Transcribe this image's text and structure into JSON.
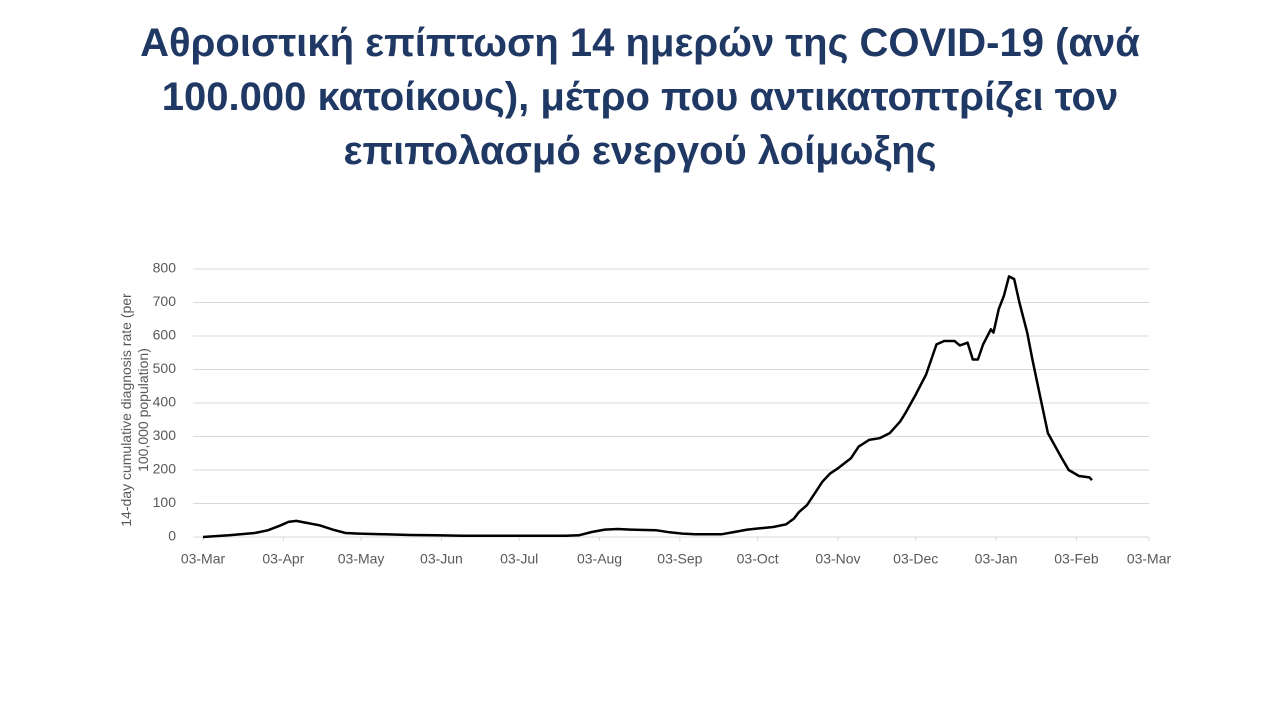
{
  "chart_data": {
    "type": "line",
    "title": "Αθροιστική επίπτωση 14 ημερών της COVID-19 (ανά 100.000 κατοίκους), μέτρο που αντικατοπτρίζει τον επιπολασμό ενεργού λοίμωξης",
    "y_label": "14-day cumulative diagnosis rate (per 100,000 population)",
    "series": [
      {
        "name": "14-day cumulative diagnosis rate",
        "color": "#000000",
        "x": [
          0,
          10,
          20,
          25,
          30,
          33,
          36,
          40,
          45,
          50,
          55,
          60,
          70,
          80,
          90,
          100,
          120,
          140,
          145,
          150,
          155,
          160,
          165,
          175,
          180,
          185,
          190,
          200,
          205,
          210,
          215,
          220,
          225,
          228,
          230,
          233,
          236,
          239,
          242,
          245,
          250,
          253,
          257,
          261,
          265,
          269,
          271,
          275,
          279,
          283,
          286,
          290,
          292,
          295,
          297,
          299,
          301,
          304,
          305,
          307,
          309,
          311,
          313,
          315,
          318,
          320,
          323,
          326,
          331,
          334,
          338,
          342,
          343
        ],
        "values": [
          0,
          5,
          12,
          20,
          35,
          45,
          48,
          42,
          35,
          22,
          12,
          10,
          8,
          6,
          5,
          4,
          4,
          4,
          5,
          15,
          22,
          24,
          22,
          20,
          14,
          10,
          8,
          8,
          15,
          22,
          26,
          30,
          38,
          55,
          75,
          95,
          130,
          165,
          190,
          205,
          235,
          270,
          290,
          295,
          310,
          345,
          370,
          425,
          485,
          575,
          585,
          585,
          572,
          580,
          530,
          530,
          575,
          620,
          610,
          680,
          720,
          778,
          770,
          700,
          610,
          530,
          420,
          310,
          240,
          200,
          182,
          178,
          170
        ]
      }
    ],
    "xlim": [
      0,
      365
    ],
    "xticks": [
      {
        "value": 0,
        "label": "03-Mar"
      },
      {
        "value": 31,
        "label": "03-Apr"
      },
      {
        "value": 61,
        "label": "03-May"
      },
      {
        "value": 92,
        "label": "03-Jun"
      },
      {
        "value": 122,
        "label": "03-Jul"
      },
      {
        "value": 153,
        "label": "03-Aug"
      },
      {
        "value": 184,
        "label": "03-Sep"
      },
      {
        "value": 214,
        "label": "03-Oct"
      },
      {
        "value": 245,
        "label": "03-Nov"
      },
      {
        "value": 275,
        "label": "03-Dec"
      },
      {
        "value": 306,
        "label": "03-Jan"
      },
      {
        "value": 337,
        "label": "03-Feb"
      },
      {
        "value": 365,
        "label": "03-Mar"
      }
    ],
    "ylim": [
      0,
      800
    ],
    "yticks": [
      0,
      100,
      200,
      300,
      400,
      500,
      600,
      700,
      800
    ],
    "grid": true
  }
}
